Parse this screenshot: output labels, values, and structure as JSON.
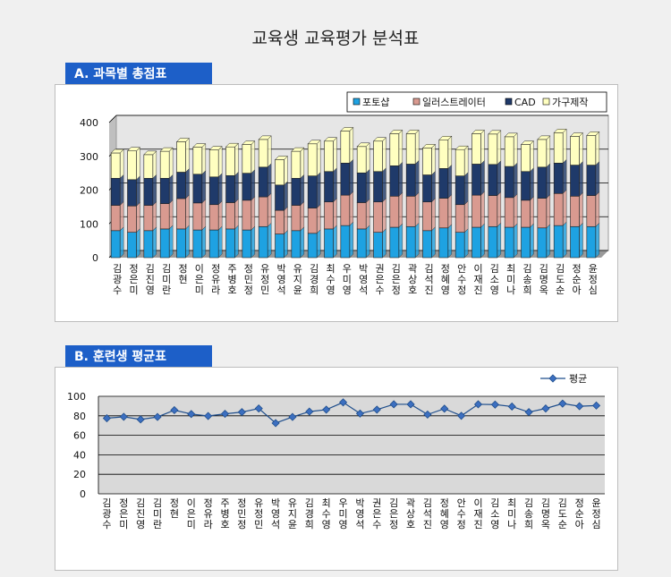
{
  "page": {
    "title": "교육생 교육평가 분석표"
  },
  "sections": [
    {
      "label": "A. 과목별 총점표"
    },
    {
      "label": "B. 훈련생 평균표"
    }
  ],
  "colors": {
    "tab": "#1d5fc8",
    "s1": "#1ea2e2",
    "s2": "#d99a90",
    "s3": "#1f3a6a",
    "s4": "#ffffc0",
    "line": "#1f4e8c",
    "plot_b": "#d9d9d9"
  },
  "chart_data": [
    {
      "type": "bar",
      "stacked": true,
      "three_d": true,
      "legend_position": "top-right",
      "grid": true,
      "ylim": [
        0,
        400
      ],
      "yticks": [
        0,
        100,
        200,
        300,
        400
      ],
      "categories": [
        "김광수",
        "정은미",
        "김진영",
        "김미란",
        "정현",
        "이은미",
        "정유라",
        "주병호",
        "정민정",
        "유정민",
        "박영석",
        "유지윤",
        "김경희",
        "최수영",
        "우미영",
        "박영석",
        "권은수",
        "김은정",
        "곽상호",
        "김석진",
        "정혜영",
        "안수정",
        "이재진",
        "김소영",
        "최미나",
        "김송희",
        "김명옥",
        "김도순",
        "정순아",
        "윤정심"
      ],
      "series": [
        {
          "name": "포토샵",
          "values": [
            80,
            75,
            80,
            85,
            85,
            82,
            82,
            85,
            82,
            92,
            70,
            80,
            72,
            85,
            95,
            85,
            75,
            90,
            92,
            80,
            88,
            75,
            90,
            92,
            90,
            90,
            88,
            95,
            92,
            92
          ]
        },
        {
          "name": "일러스트레이터",
          "values": [
            75,
            78,
            75,
            75,
            90,
            80,
            75,
            78,
            88,
            88,
            70,
            75,
            75,
            80,
            90,
            78,
            90,
            92,
            90,
            85,
            88,
            82,
            95,
            92,
            88,
            80,
            88,
            95,
            90,
            92
          ]
        },
        {
          "name": "CAD",
          "values": [
            80,
            78,
            80,
            75,
            78,
            85,
            82,
            80,
            80,
            88,
            75,
            80,
            95,
            90,
            95,
            88,
            90,
            90,
            95,
            80,
            88,
            85,
            92,
            92,
            92,
            85,
            92,
            90,
            92,
            90
          ]
        },
        {
          "name": "가구제작",
          "values": [
            75,
            85,
            70,
            80,
            90,
            80,
            80,
            85,
            85,
            82,
            75,
            80,
            95,
            90,
            95,
            78,
            90,
            95,
            90,
            80,
            85,
            78,
            90,
            90,
            88,
            80,
            82,
            90,
            85,
            88
          ]
        }
      ]
    },
    {
      "type": "line",
      "legend_position": "top-right",
      "grid": true,
      "ylim": [
        0,
        100
      ],
      "yticks": [
        0,
        20,
        40,
        60,
        80,
        100
      ],
      "categories": [
        "김광수",
        "정은미",
        "김진영",
        "김미란",
        "정현",
        "이은미",
        "정유라",
        "주병호",
        "정민정",
        "유정민",
        "박영석",
        "유지윤",
        "김경희",
        "최수영",
        "우미영",
        "박영석",
        "권은수",
        "김은정",
        "곽상호",
        "김석진",
        "정혜영",
        "안수정",
        "이재진",
        "김소영",
        "최미나",
        "김송희",
        "김명옥",
        "김도순",
        "정순아",
        "윤정심"
      ],
      "series": [
        {
          "name": "평균",
          "values": [
            77.5,
            79,
            76.3,
            78.8,
            85.8,
            81.8,
            79.8,
            82,
            83.8,
            87.5,
            72.5,
            78.8,
            84.3,
            86.3,
            93.8,
            82.3,
            86.3,
            91.8,
            91.8,
            81.3,
            87.3,
            80,
            91.8,
            91.5,
            89.5,
            83.8,
            87.5,
            92.5,
            89.8,
            90.5
          ]
        }
      ]
    }
  ]
}
